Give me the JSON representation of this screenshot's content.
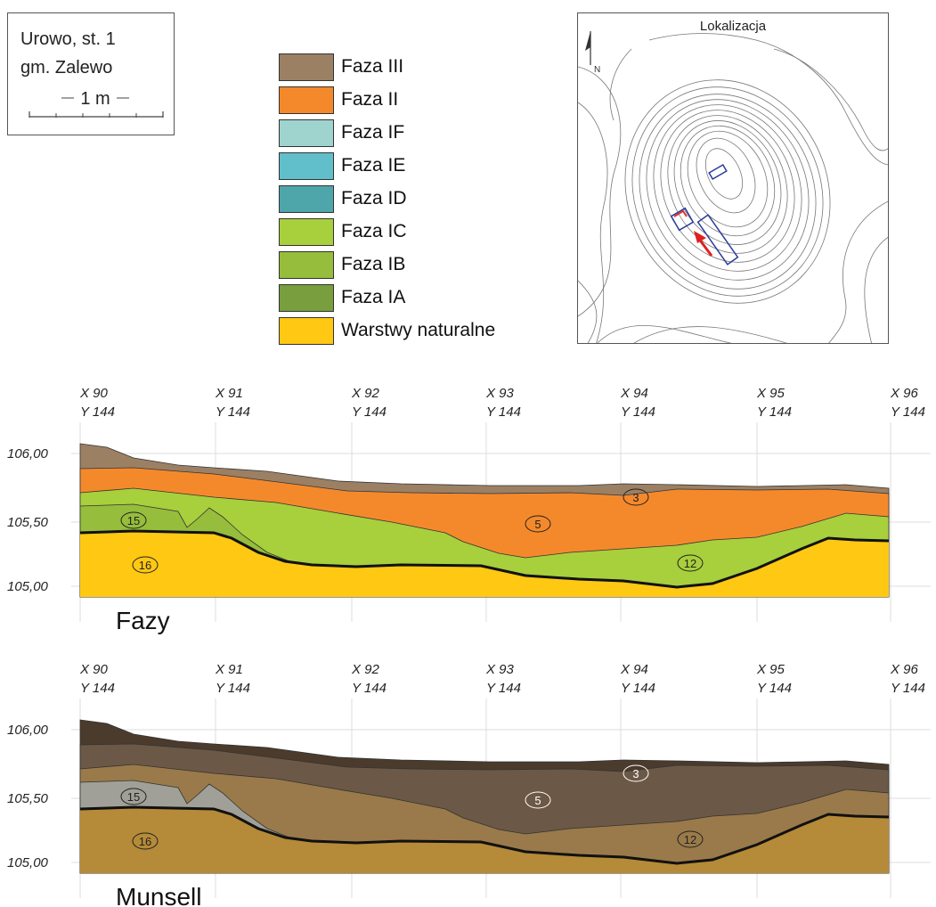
{
  "site": {
    "line1": "Urowo, st. 1",
    "line2": "gm. Zalewo",
    "scale_label": "1 m"
  },
  "legend": [
    {
      "label": "Faza III",
      "color": "#9b8064"
    },
    {
      "label": "Faza II",
      "color": "#f4892c"
    },
    {
      "label": "Faza IF",
      "color": "#9fd4ce"
    },
    {
      "label": "Faza IE",
      "color": "#61bfcb"
    },
    {
      "label": "Faza ID",
      "color": "#4ea6ab"
    },
    {
      "label": "Faza IC",
      "color": "#a8cf3c"
    },
    {
      "label": "Faza IB",
      "color": "#96bd3b"
    },
    {
      "label": "Faza IA",
      "color": "#789e3d"
    },
    {
      "label": "Warstwy naturalne",
      "color": "#ffc812"
    }
  ],
  "map": {
    "title": "Lokalizacja",
    "north_label": "N"
  },
  "profile_axes": {
    "grid_points": [
      {
        "x": "X 90",
        "y": "Y 144"
      },
      {
        "x": "X 91",
        "y": "Y 144"
      },
      {
        "x": "X 92",
        "y": "Y 144"
      },
      {
        "x": "X 93",
        "y": "Y 144"
      },
      {
        "x": "X 94",
        "y": "Y 144"
      },
      {
        "x": "X 95",
        "y": "Y 144"
      },
      {
        "x": "X 96",
        "y": "Y 144"
      }
    ],
    "elevations": [
      "106,00",
      "105,50",
      "105,00"
    ]
  },
  "profiles": [
    {
      "id": "fazy",
      "title": "Fazy",
      "colors": {
        "top": "#9b8064",
        "orange": "#f4892c",
        "green": "#a8cf3c",
        "dark_green": "#96bd3b",
        "natural": "#ffc812"
      },
      "layer_labels": {
        "l3": "3",
        "l5": "5",
        "l12": "12",
        "l15": "15",
        "l16": "16"
      }
    },
    {
      "id": "munsell",
      "title": "Munsell",
      "colors": {
        "top": "#4b3b2d",
        "orange": "#6c5846",
        "green": "#9a7a4a",
        "dark_green": "#a0a098",
        "natural": "#b58a38"
      },
      "layer_labels": {
        "l3": "3",
        "l5": "5",
        "l12": "12",
        "l15": "15",
        "l16": "16"
      }
    }
  ]
}
